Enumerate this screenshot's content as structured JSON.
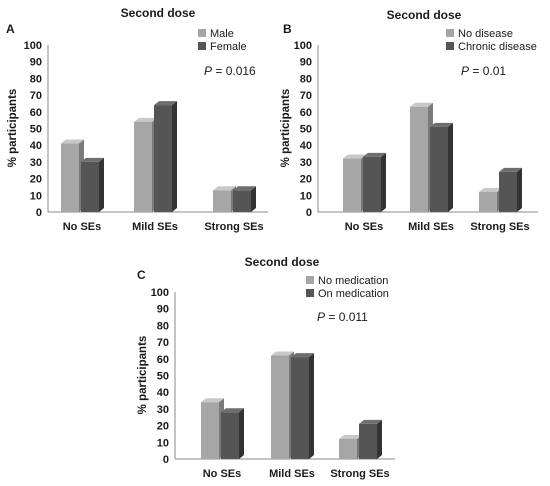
{
  "colors": {
    "series1": "#a6a6a6",
    "series1_top": "#c8c8c8",
    "series1_side": "#7a7a7a",
    "series2": "#555555",
    "series2_top": "#6e6e6e",
    "series2_side": "#333333",
    "axis": "#888888"
  },
  "chart_data": [
    {
      "type": "bar",
      "panel_label": "A",
      "title": "Second dose",
      "ylabel": "% participants",
      "ylim": [
        0,
        100
      ],
      "yticks": [
        "0",
        "10",
        "20",
        "30",
        "40",
        "50",
        "60",
        "70",
        "80",
        "90",
        "100"
      ],
      "categories": [
        "No SEs",
        "Mild SEs",
        "Strong SEs"
      ],
      "series": [
        {
          "name": "Male",
          "values": [
            41,
            54,
            13
          ]
        },
        {
          "name": "Female",
          "values": [
            30,
            64,
            13
          ]
        }
      ],
      "annotation": {
        "italic": "P",
        "rest": " = 0.016"
      },
      "legend": "top-right",
      "grid": false
    },
    {
      "type": "bar",
      "panel_label": "B",
      "title": "Second dose",
      "ylabel": "% participants",
      "ylim": [
        0,
        100
      ],
      "yticks": [
        "0",
        "10",
        "20",
        "30",
        "40",
        "50",
        "60",
        "70",
        "80",
        "90",
        "100"
      ],
      "categories": [
        "No SEs",
        "Mild SEs",
        "Strong SEs"
      ],
      "series": [
        {
          "name": "No disease",
          "values": [
            32,
            63,
            12
          ]
        },
        {
          "name": "Chronic disease",
          "values": [
            33,
            51,
            24
          ]
        }
      ],
      "annotation": {
        "italic": "P",
        "rest": " = 0.01"
      },
      "legend": "top-right",
      "grid": false
    },
    {
      "type": "bar",
      "panel_label": "C",
      "title": "Second dose",
      "ylabel": "% participants",
      "ylim": [
        0,
        100
      ],
      "yticks": [
        "0",
        "10",
        "20",
        "30",
        "40",
        "50",
        "60",
        "70",
        "80",
        "90",
        "100"
      ],
      "categories": [
        "No SEs",
        "Mild SEs",
        "Strong SEs"
      ],
      "series": [
        {
          "name": "No medication",
          "values": [
            34,
            62,
            12
          ]
        },
        {
          "name": "On medication",
          "values": [
            28,
            61,
            21
          ]
        }
      ],
      "annotation": {
        "italic": "P",
        "rest": " = 0.011"
      },
      "legend": "top-right",
      "grid": false
    }
  ]
}
